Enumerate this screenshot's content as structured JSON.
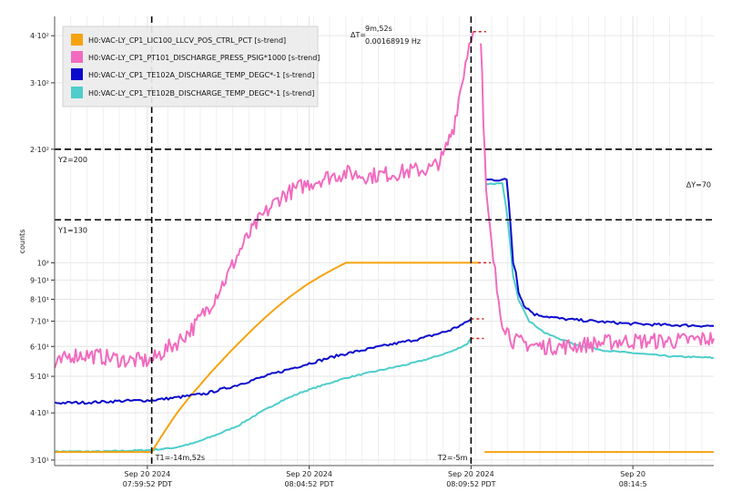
{
  "chart_data": {
    "type": "line",
    "ylabel": "counts",
    "yscale": "log",
    "ylim": [
      29,
      450
    ],
    "xlim": [
      0,
      1222
    ],
    "grid": true,
    "legend_position": "top-left",
    "x_ticks": [
      {
        "t": 172,
        "line1": "Sep 20 2024",
        "line2": "07:59:52 PDT"
      },
      {
        "t": 472,
        "line1": "Sep 20 2024",
        "line2": "08:04:52 PDT"
      },
      {
        "t": 772,
        "line1": "Sep 20 2024",
        "line2": "08:09:52 PDT"
      },
      {
        "t": 1072,
        "line1": "Sep 20",
        "line2": "08:14:5"
      }
    ],
    "y_ticks": [
      {
        "v": 30,
        "label": "3·10¹"
      },
      {
        "v": 40,
        "label": "4·10¹"
      },
      {
        "v": 50,
        "label": "5·10¹"
      },
      {
        "v": 60,
        "label": "6·10¹"
      },
      {
        "v": 70,
        "label": "7·10¹"
      },
      {
        "v": 80,
        "label": "8·10¹"
      },
      {
        "v": 90,
        "label": "9·10¹"
      },
      {
        "v": 100,
        "label": "10²"
      },
      {
        "v": 200,
        "label": "2·10²"
      },
      {
        "v": 300,
        "label": "3·10²"
      },
      {
        "v": 400,
        "label": "4·10²"
      }
    ],
    "cursors": {
      "t1": {
        "t": 180,
        "label": "T1=-14m,52s"
      },
      "t2": {
        "t": 772,
        "label": "T2=-5m"
      },
      "y1": {
        "v": 130,
        "label": "Y1=130"
      },
      "y2": {
        "v": 200,
        "label": "Y2=200"
      },
      "delta_t": {
        "label": "ΔT=",
        "value": "9m,52s",
        "freq": "0.00168919 Hz"
      },
      "delta_y": {
        "label": "ΔY=70"
      }
    },
    "series": [
      {
        "name": "H0:VAC-LY_CP1_LIC100_LLCV_POS_CTRL_PCT [s-trend]",
        "color": "#f5a30f",
        "width": 2,
        "noise": 0,
        "points": [
          [
            0,
            31.5
          ],
          [
            180,
            31.5
          ],
          [
            200,
            35
          ],
          [
            230,
            40.5
          ],
          [
            270,
            47.5
          ],
          [
            310,
            55
          ],
          [
            350,
            63
          ],
          [
            390,
            71.5
          ],
          [
            430,
            80
          ],
          [
            470,
            88
          ],
          [
            510,
            95
          ],
          [
            540,
            100
          ],
          [
            772,
            100
          ],
          [
            785,
            100
          ]
        ],
        "gap": [
          [
            797,
            31.5
          ],
          [
            1222,
            31.5
          ]
        ]
      },
      {
        "name": "H0:VAC-LY_CP1_PT101_DISCHARGE_PRESS_PSIG*1000 [s-trend]",
        "color": "#f26bbf",
        "width": 2,
        "noise": 0.05,
        "points": [
          [
            0,
            53
          ],
          [
            30,
            57
          ],
          [
            60,
            57
          ],
          [
            100,
            56
          ],
          [
            140,
            55
          ],
          [
            180,
            55
          ],
          [
            200,
            58
          ],
          [
            230,
            62
          ],
          [
            260,
            68
          ],
          [
            290,
            78
          ],
          [
            320,
            92
          ],
          [
            350,
            112
          ],
          [
            380,
            130
          ],
          [
            420,
            150
          ],
          [
            460,
            160
          ],
          [
            500,
            168
          ],
          [
            540,
            173
          ],
          [
            580,
            170
          ],
          [
            620,
            172
          ],
          [
            660,
            175
          ],
          [
            700,
            178
          ],
          [
            720,
            190
          ],
          [
            740,
            230
          ],
          [
            755,
            300
          ],
          [
            765,
            360
          ],
          [
            772,
            400
          ],
          [
            776,
            410
          ]
        ],
        "gap": [
          [
            790,
            400
          ],
          [
            795,
            230
          ],
          [
            800,
            150
          ],
          [
            810,
            110
          ],
          [
            820,
            85
          ],
          [
            830,
            70
          ],
          [
            850,
            62
          ],
          [
            900,
            60
          ],
          [
            950,
            60
          ],
          [
            1000,
            61
          ],
          [
            1050,
            62
          ],
          [
            1100,
            62
          ],
          [
            1150,
            62
          ],
          [
            1222,
            63
          ]
        ]
      },
      {
        "name": "H0:VAC-LY_CP1_TE102A_DISCHARGE_TEMP_DEGC*-1 [s-trend]",
        "color": "#0a0acc",
        "width": 2,
        "noise": 0.008,
        "points": [
          [
            0,
            42.5
          ],
          [
            60,
            42.6
          ],
          [
            120,
            43
          ],
          [
            180,
            43.2
          ],
          [
            230,
            44
          ],
          [
            280,
            45
          ],
          [
            330,
            47
          ],
          [
            380,
            49.5
          ],
          [
            430,
            52
          ],
          [
            480,
            54.5
          ],
          [
            530,
            57
          ],
          [
            580,
            59
          ],
          [
            630,
            61
          ],
          [
            680,
            63
          ],
          [
            730,
            66
          ],
          [
            760,
            69
          ],
          [
            772,
            71
          ]
        ],
        "gap": [
          [
            800,
            166
          ],
          [
            838,
            166
          ],
          [
            850,
            100
          ],
          [
            855,
            95
          ],
          [
            860,
            84
          ],
          [
            870,
            77
          ],
          [
            890,
            73
          ],
          [
            940,
            71
          ],
          [
            1000,
            70
          ],
          [
            1060,
            69
          ],
          [
            1120,
            68.5
          ],
          [
            1222,
            68
          ]
        ]
      },
      {
        "name": "H0:VAC-LY_CP1_TE102B_DISCHARGE_TEMP_DEGC*-1 [s-trend]",
        "color": "#4ecdcb",
        "width": 2,
        "noise": 0.004,
        "points": [
          [
            0,
            31.6
          ],
          [
            90,
            31.6
          ],
          [
            180,
            31.9
          ],
          [
            220,
            32.3
          ],
          [
            260,
            33.3
          ],
          [
            300,
            35
          ],
          [
            340,
            37
          ],
          [
            380,
            40
          ],
          [
            420,
            43
          ],
          [
            460,
            45.5
          ],
          [
            500,
            47.5
          ],
          [
            540,
            49.5
          ],
          [
            580,
            51
          ],
          [
            620,
            52.5
          ],
          [
            660,
            54
          ],
          [
            700,
            56
          ],
          [
            740,
            58.5
          ],
          [
            765,
            61
          ],
          [
            772,
            63
          ]
        ],
        "gap": [
          [
            800,
            162
          ],
          [
            830,
            162
          ],
          [
            840,
            130
          ],
          [
            845,
            110
          ],
          [
            850,
            92
          ],
          [
            860,
            80
          ],
          [
            880,
            70
          ],
          [
            910,
            65
          ],
          [
            960,
            61
          ],
          [
            1020,
            58.5
          ],
          [
            1080,
            57.5
          ],
          [
            1140,
            56.5
          ],
          [
            1222,
            56
          ]
        ]
      }
    ]
  }
}
